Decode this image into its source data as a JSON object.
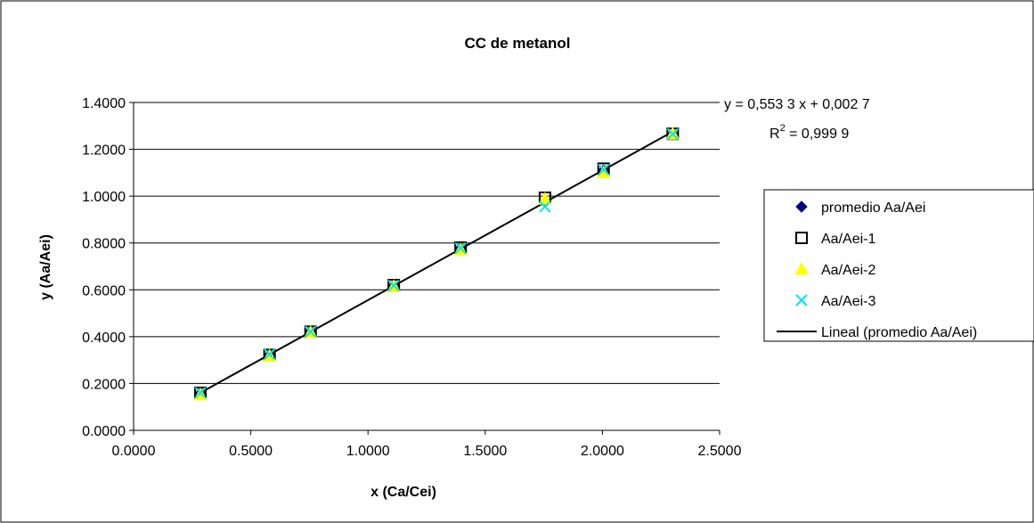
{
  "chart_data": {
    "type": "scatter",
    "title": "CC de metanol",
    "xlabel": "x (Ca/Cei)",
    "ylabel": "y (Aa/Aei)",
    "xlim": [
      0,
      2.5
    ],
    "ylim": [
      0,
      1.4
    ],
    "x_ticks": [
      "0.0000",
      "0.5000",
      "1.0000",
      "1.5000",
      "2.0000",
      "2.5000"
    ],
    "y_ticks": [
      "0.0000",
      "0.2000",
      "0.4000",
      "0.6000",
      "0.8000",
      "1.0000",
      "1.2000",
      "1.4000"
    ],
    "grid": "horizontal",
    "legend_position": "right",
    "series": [
      {
        "name": "promedio Aa/Aei",
        "marker": "diamond",
        "color": "#000080",
        "x": [
          0.285,
          0.58,
          0.755,
          1.11,
          1.395,
          1.755,
          2.005,
          2.3
        ],
        "y": [
          0.158,
          0.322,
          0.421,
          0.617,
          0.777,
          0.975,
          1.11,
          1.265
        ]
      },
      {
        "name": "Aa/Aei-1",
        "marker": "square-open",
        "color": "#000000",
        "x": [
          0.285,
          0.58,
          0.755,
          1.11,
          1.395,
          1.755,
          2.005,
          2.3
        ],
        "y": [
          0.16,
          0.322,
          0.421,
          0.62,
          0.78,
          0.993,
          1.117,
          1.266
        ]
      },
      {
        "name": "Aa/Aei-2",
        "marker": "triangle",
        "color": "#ffff00",
        "x": [
          0.285,
          0.58,
          0.755,
          1.11,
          1.395,
          1.755,
          2.005,
          2.3
        ],
        "y": [
          0.153,
          0.318,
          0.418,
          0.615,
          0.772,
          0.988,
          1.102,
          1.266
        ]
      },
      {
        "name": "Aa/Aei-3",
        "marker": "x",
        "color": "#00e5ee",
        "x": [
          0.285,
          0.58,
          0.755,
          1.11,
          1.395,
          1.755,
          2.005,
          2.3
        ],
        "y": [
          0.16,
          0.325,
          0.421,
          0.618,
          0.778,
          0.955,
          1.113,
          1.265
        ]
      }
    ],
    "trendline": {
      "name": "Lineal (promedio Aa/Aei)",
      "slope": 0.5533,
      "intercept": 0.0027,
      "x_range": [
        0.285,
        2.3
      ]
    },
    "equation": {
      "line1": "y = 0,553 3 x + 0,002 7",
      "r2_prefix": "R",
      "r2_sup": "2",
      "r2_value": " = 0,999 9"
    }
  }
}
